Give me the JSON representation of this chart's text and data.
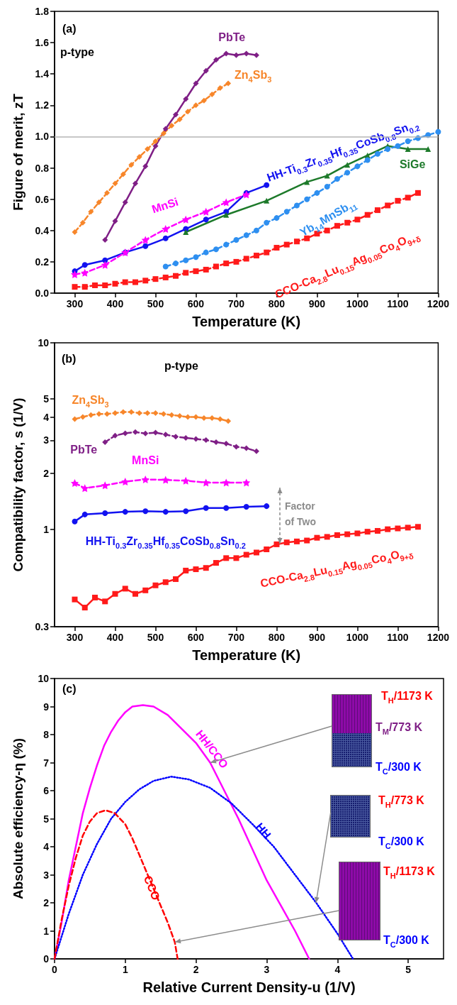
{
  "chart_data": [
    {
      "type": "line",
      "xlabel": "Temperature (K)",
      "ylabel": "Figure of merit, zT",
      "xlim": [
        250,
        1200
      ],
      "xticks": [
        300,
        400,
        500,
        600,
        700,
        800,
        900,
        1000,
        1100,
        1200
      ],
      "ylim": [
        0,
        1.8
      ],
      "yticks": [
        {
          "value": 0,
          "label": "0.0"
        },
        0.2,
        0.4,
        0.6,
        0.8,
        {
          "value": 1,
          "label": "1.0"
        },
        1.2,
        1.4,
        1.6,
        1.8
      ],
      "annotations": [
        "(a)",
        "p-type"
      ],
      "ref_lines": [
        {
          "axis": "y",
          "value": 1,
          "color": "#b4b4b4"
        }
      ],
      "series": [
        {
          "name": "PbTe",
          "color": "#7f1f86",
          "marker": "diamond",
          "line_style": "solid",
          "x": [
            375,
            400,
            425,
            450,
            475,
            500,
            525,
            550,
            575,
            600,
            625,
            650,
            675,
            700,
            725,
            750
          ],
          "values": [
            0.34,
            0.46,
            0.58,
            0.7,
            0.81,
            0.94,
            1.05,
            1.14,
            1.24,
            1.34,
            1.42,
            1.49,
            1.53,
            1.52,
            1.53,
            1.52
          ]
        },
        {
          "name": "Zn$_{4}$Sb$_{3}$",
          "color": "#f7862a",
          "marker": "diamond",
          "line_style": "dashed",
          "x": [
            300,
            320,
            340,
            360,
            380,
            400,
            420,
            440,
            460,
            480,
            500,
            520,
            540,
            560,
            580,
            600,
            620,
            640,
            660,
            680
          ],
          "values": [
            0.39,
            0.45,
            0.52,
            0.58,
            0.64,
            0.7,
            0.76,
            0.82,
            0.87,
            0.92,
            0.97,
            1.02,
            1.07,
            1.11,
            1.16,
            1.2,
            1.23,
            1.27,
            1.31,
            1.34
          ]
        },
        {
          "name": "HH-Ti$_{0.3}$Zr$_{0.35}$Hf$_{0.35}$CoSb$_{0.8}$Sn$_{0.2}$",
          "color": "#1212f0",
          "marker": "circle",
          "line_style": "solid",
          "x": [
            300,
            325,
            375,
            425,
            475,
            525,
            575,
            625,
            675,
            725,
            775
          ],
          "values": [
            0.14,
            0.18,
            0.21,
            0.26,
            0.3,
            0.35,
            0.41,
            0.47,
            0.52,
            0.64,
            0.69
          ]
        },
        {
          "name": "MnSi",
          "color": "#ff00ff",
          "marker": "star",
          "line_style": "dashed",
          "x": [
            300,
            325,
            375,
            425,
            475,
            525,
            575,
            625,
            675,
            725
          ],
          "values": [
            0.12,
            0.13,
            0.18,
            0.26,
            0.34,
            0.41,
            0.47,
            0.52,
            0.58,
            0.63
          ]
        },
        {
          "name": "SiGe",
          "color": "#1d7a2a",
          "marker": "triangle",
          "line_style": "solid",
          "x": [
            575,
            675,
            775,
            875,
            925,
            975,
            1025,
            1075,
            1125,
            1175
          ],
          "values": [
            0.39,
            0.5,
            0.59,
            0.71,
            0.75,
            0.82,
            0.88,
            0.94,
            0.92,
            0.92
          ]
        },
        {
          "name": "Yb$_{14}$MnSb$_{11}$",
          "color": "#2e8ff0",
          "marker": "circle",
          "line_style": "dashed",
          "x": [
            525,
            550,
            575,
            600,
            625,
            650,
            675,
            700,
            725,
            750,
            775,
            800,
            825,
            850,
            875,
            900,
            925,
            950,
            975,
            1000,
            1025,
            1050,
            1075,
            1100,
            1125,
            1150,
            1175,
            1200
          ],
          "values": [
            0.17,
            0.19,
            0.21,
            0.23,
            0.26,
            0.28,
            0.31,
            0.34,
            0.37,
            0.4,
            0.45,
            0.48,
            0.52,
            0.56,
            0.6,
            0.64,
            0.68,
            0.73,
            0.77,
            0.81,
            0.85,
            0.89,
            0.92,
            0.94,
            0.97,
            0.99,
            1.01,
            1.03
          ]
        },
        {
          "name": "CCO-Ca$_{2.8}$Lu$_{0.15}$Ag$_{0.05}$Co$_{4}$O$_{9+δ}$",
          "color": "#ff1a1a",
          "marker": "square",
          "line_style": "dashed",
          "x": [
            300,
            325,
            350,
            375,
            400,
            425,
            450,
            475,
            500,
            525,
            550,
            575,
            600,
            625,
            650,
            675,
            700,
            725,
            750,
            775,
            800,
            825,
            850,
            875,
            900,
            925,
            950,
            975,
            1000,
            1025,
            1050,
            1075,
            1100,
            1125,
            1150
          ],
          "values": [
            0.04,
            0.04,
            0.05,
            0.05,
            0.06,
            0.07,
            0.07,
            0.08,
            0.09,
            0.1,
            0.11,
            0.13,
            0.14,
            0.15,
            0.17,
            0.19,
            0.2,
            0.22,
            0.24,
            0.26,
            0.29,
            0.31,
            0.33,
            0.35,
            0.38,
            0.4,
            0.43,
            0.45,
            0.47,
            0.5,
            0.53,
            0.56,
            0.59,
            0.61,
            0.64
          ]
        }
      ]
    },
    {
      "type": "line",
      "xlabel": "Temperature (K)",
      "ylabel": "Compatibility factor, s (1/V)",
      "log": "y",
      "xlim": [
        250,
        1200
      ],
      "xticks": [
        300,
        400,
        500,
        600,
        700,
        800,
        900,
        1000,
        1100,
        1200
      ],
      "ylim": [
        0.3,
        10
      ],
      "yticks": [
        0.3,
        1,
        2,
        3,
        4,
        5,
        10
      ],
      "annotations": [
        "(b)",
        "p-type",
        "Factor of Two"
      ],
      "series": [
        {
          "name": "Zn$_{4}$Sb$_{3}$",
          "color": "#f7862a",
          "marker": "diamond",
          "line_style": "dashed",
          "x": [
            300,
            320,
            340,
            360,
            380,
            400,
            420,
            440,
            460,
            480,
            500,
            520,
            540,
            560,
            580,
            600,
            620,
            640,
            660,
            680
          ],
          "values": [
            3.9,
            4.0,
            4.1,
            4.15,
            4.15,
            4.2,
            4.25,
            4.25,
            4.2,
            4.2,
            4.2,
            4.15,
            4.1,
            4.05,
            4.0,
            4.0,
            3.95,
            3.95,
            3.9,
            3.8
          ]
        },
        {
          "name": "PbTe",
          "color": "#7f1f86",
          "marker": "diamond",
          "line_style": "dashed",
          "x": [
            375,
            400,
            425,
            450,
            475,
            500,
            525,
            550,
            575,
            600,
            625,
            650,
            675,
            700,
            725,
            750
          ],
          "values": [
            2.93,
            3.18,
            3.27,
            3.32,
            3.26,
            3.3,
            3.22,
            3.14,
            3.09,
            3.05,
            3.01,
            2.93,
            2.88,
            2.77,
            2.72,
            2.62
          ]
        },
        {
          "name": "MnSi",
          "color": "#ff00ff",
          "marker": "star",
          "line_style": "dashed",
          "x": [
            300,
            325,
            375,
            425,
            475,
            525,
            575,
            625,
            675,
            725
          ],
          "values": [
            1.77,
            1.66,
            1.72,
            1.8,
            1.85,
            1.84,
            1.82,
            1.78,
            1.78,
            1.78
          ]
        },
        {
          "name": "HH-Ti$_{0.3}$Zr$_{0.35}$Hf$_{0.35}$CoSb$_{0.8}$Sn$_{0.2}$",
          "color": "#1212f0",
          "marker": "circle",
          "line_style": "solid",
          "x": [
            300,
            325,
            375,
            425,
            475,
            525,
            575,
            625,
            675,
            725,
            775
          ],
          "values": [
            1.1,
            1.2,
            1.22,
            1.24,
            1.25,
            1.24,
            1.25,
            1.3,
            1.3,
            1.32,
            1.33
          ]
        },
        {
          "name": "CCO-Ca$_{2.8}$Lu$_{0.15}$Ag$_{0.05}$Co$_{4}$O$_{9+δ}$",
          "color": "#ff1a1a",
          "marker": "square",
          "line_style": "solid",
          "x": [
            300,
            325,
            350,
            375,
            400,
            425,
            450,
            475,
            500,
            525,
            550,
            575,
            600,
            625,
            650,
            675,
            700,
            725,
            750,
            775,
            800,
            825,
            850,
            875,
            900,
            925,
            950,
            975,
            1000,
            1025,
            1050,
            1075,
            1100,
            1125,
            1150
          ],
          "values": [
            0.42,
            0.38,
            0.43,
            0.41,
            0.45,
            0.48,
            0.45,
            0.47,
            0.5,
            0.52,
            0.54,
            0.6,
            0.61,
            0.62,
            0.66,
            0.7,
            0.7,
            0.73,
            0.75,
            0.78,
            0.83,
            0.85,
            0.86,
            0.87,
            0.9,
            0.91,
            0.93,
            0.94,
            0.95,
            0.97,
            0.98,
            1.0,
            1.01,
            1.02,
            1.03
          ]
        }
      ]
    },
    {
      "type": "line",
      "xlabel": "Relative Current Density-u (1/V)",
      "ylabel": "Absolute efficiency-η (%)",
      "marker": "none",
      "xlim": [
        0,
        5.5
      ],
      "xticks": [
        0,
        1,
        2,
        3,
        4,
        5
      ],
      "ylim": [
        0,
        10
      ],
      "yticks": [
        0,
        1,
        2,
        3,
        4,
        5,
        6,
        7,
        8,
        9,
        10
      ],
      "annotations": [
        "(c)",
        "T$_{H}$/1173 K",
        "T$_{M}$/773 K",
        "T$_{C}$/300 K",
        "T$_{H}$/773 K",
        "T$_{C}$/300 K",
        "T$_{H}$/1173 K",
        "T$_{C}$/300 K"
      ],
      "series": [
        {
          "name": "HH/CCO",
          "color": "#ff00ff",
          "line_style": "solid",
          "x": [
            0,
            0.1,
            0.2,
            0.3,
            0.4,
            0.5,
            0.6,
            0.7,
            0.8,
            0.9,
            1.0,
            1.1,
            1.25,
            1.4,
            1.6,
            1.8,
            2.0,
            2.2,
            2.4,
            2.6,
            2.8,
            3.0,
            3.2,
            3.4,
            3.6
          ],
          "values": [
            0,
            1.3,
            2.8,
            4.0,
            5.2,
            6.1,
            6.9,
            7.6,
            8.1,
            8.5,
            8.8,
            9.0,
            9.05,
            9.0,
            8.7,
            8.2,
            7.7,
            7.0,
            6.0,
            5.0,
            3.9,
            2.8,
            1.9,
            1.0,
            0
          ]
        },
        {
          "name": "HH",
          "color": "#0000ff",
          "line_style": "dotted",
          "x": [
            0,
            0.2,
            0.4,
            0.6,
            0.8,
            1.0,
            1.2,
            1.4,
            1.65,
            1.9,
            2.2,
            2.5,
            2.8,
            3.1,
            3.4,
            3.7,
            4.0,
            4.22
          ],
          "values": [
            0,
            1.6,
            3.0,
            4.1,
            5.0,
            5.6,
            6.05,
            6.35,
            6.5,
            6.4,
            6.1,
            5.55,
            4.8,
            4.0,
            3.0,
            2.0,
            0.9,
            0
          ]
        },
        {
          "name": "CCO",
          "color": "#ff0000",
          "line_style": "dashed",
          "x": [
            0,
            0.1,
            0.2,
            0.3,
            0.4,
            0.5,
            0.6,
            0.72,
            0.85,
            1.0,
            1.1,
            1.2,
            1.3,
            1.4,
            1.5,
            1.6,
            1.7,
            1.74
          ],
          "values": [
            0,
            1.4,
            2.6,
            3.6,
            4.4,
            4.9,
            5.2,
            5.3,
            5.2,
            4.8,
            4.3,
            3.7,
            3.1,
            2.5,
            1.9,
            1.3,
            0.6,
            0
          ]
        }
      ]
    }
  ]
}
